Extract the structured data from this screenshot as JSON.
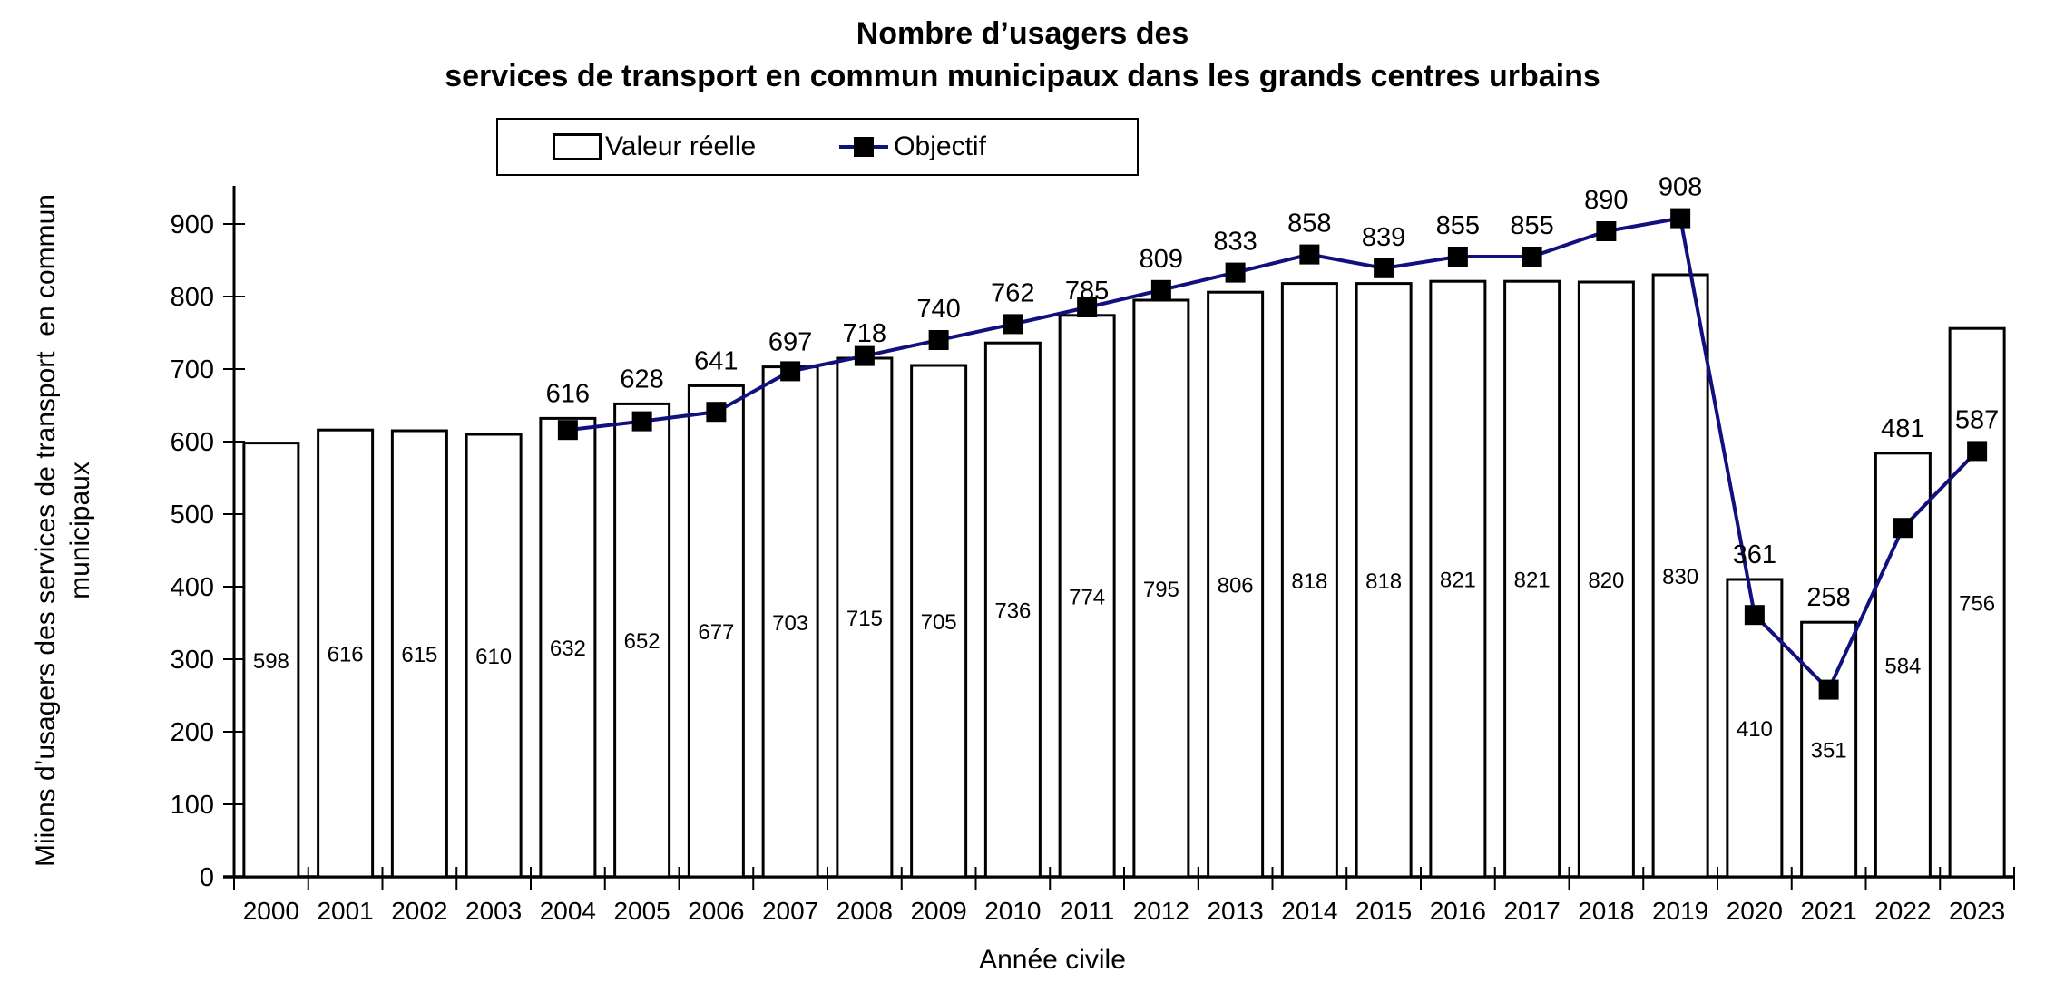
{
  "title": {
    "line1": "Nombre d’usagers des",
    "line2": "services de transport en commun municipaux dans les grands centres urbains"
  },
  "legend": {
    "items": [
      {
        "label": "Valeur réelle",
        "swatch": "bar-outline-swatch"
      },
      {
        "label": "Objectif",
        "swatch": "line-marker-swatch"
      }
    ]
  },
  "axes": {
    "x_title": "Année civile",
    "y_title_line1": "Miions d’usagers des services de transport  en commun",
    "y_title_line2": "municipaux"
  },
  "colors": {
    "objectif_line": "#10107E",
    "marker": "#000000",
    "bar_fill": "#FFFFFF",
    "bar_border": "#000000",
    "text": "#000000"
  },
  "chart_data": {
    "type": "bar",
    "title": "Nombre d’usagers des services de transport en commun municipaux dans les grands centres urbains",
    "xlabel": "Année civile",
    "ylabel": "Miions d’usagers des services de transport en commun municipaux",
    "ylim": [
      0,
      900
    ],
    "y_ticks": [
      0,
      100,
      200,
      300,
      400,
      500,
      600,
      700,
      800,
      900
    ],
    "grid": false,
    "legend_position": "top",
    "categories": [
      "2000",
      "2001",
      "2002",
      "2003",
      "2004",
      "2005",
      "2006",
      "2007",
      "2008",
      "2009",
      "2010",
      "2011",
      "2012",
      "2013",
      "2014",
      "2015",
      "2016",
      "2017",
      "2018",
      "2019",
      "2020",
      "2021",
      "2022",
      "2023"
    ],
    "series": [
      {
        "name": "Valeur réelle",
        "type": "bar",
        "values": [
          598,
          616,
          615,
          610,
          632,
          652,
          677,
          703,
          715,
          705,
          736,
          774,
          795,
          806,
          818,
          818,
          821,
          821,
          820,
          830,
          410,
          351,
          584,
          756
        ]
      },
      {
        "name": "Objectif",
        "type": "line",
        "values": [
          null,
          null,
          null,
          null,
          616,
          628,
          641,
          697,
          718,
          740,
          762,
          785,
          809,
          833,
          858,
          839,
          855,
          855,
          890,
          908,
          361,
          258,
          481,
          587
        ]
      }
    ]
  }
}
